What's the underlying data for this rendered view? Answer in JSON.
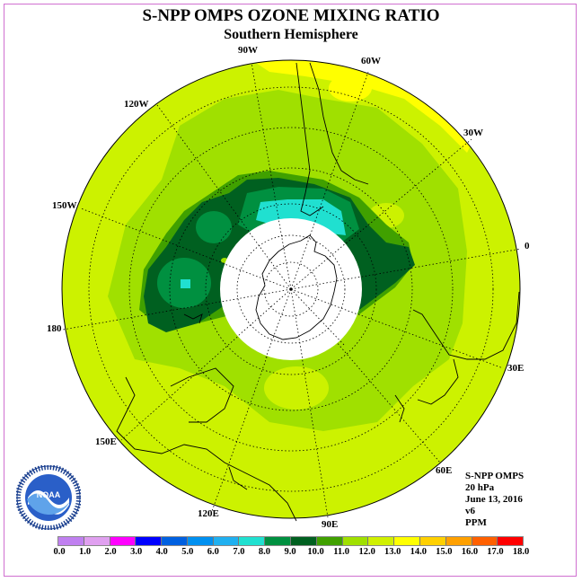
{
  "header": {
    "title": "S-NPP OMPS OZONE MIXING RATIO",
    "subtitle": "Southern Hemisphere"
  },
  "longitude_labels": [
    "90W",
    "60W",
    "120W",
    "30W",
    "150W",
    "0",
    "180",
    "30E",
    "150E",
    "60E",
    "120E",
    "90E"
  ],
  "info": {
    "instrument": "S-NPP OMPS",
    "level": "20 hPa",
    "date": "June 13, 2016",
    "version": "v6",
    "units": "PPM"
  },
  "logo": {
    "name": "NOAA",
    "ring_text": "NATIONAL OCEANIC AND ATMOSPHERIC ADMINISTRATION · U.S. DEPARTMENT OF COMMERCE"
  },
  "colorbar": {
    "ticks": [
      "0.0",
      "1.0",
      "2.0",
      "3.0",
      "4.0",
      "5.0",
      "6.0",
      "7.0",
      "8.0",
      "9.0",
      "10.0",
      "11.0",
      "12.0",
      "13.0",
      "14.0",
      "15.0",
      "16.0",
      "17.0",
      "18.0"
    ],
    "colors": [
      "#c080f0",
      "#e0a0f0",
      "#ff00ff",
      "#0000ff",
      "#0060e0",
      "#0090f0",
      "#20b0f0",
      "#20e0d0",
      "#009040",
      "#006020",
      "#40a000",
      "#a0e000",
      "#d0f000",
      "#ffff00",
      "#ffd000",
      "#ffa000",
      "#ff6000",
      "#ff0000",
      "#8b5a3c"
    ]
  },
  "colors": {
    "background_field": "#ccf200",
    "light_green": "#a0e000",
    "mid_green": "#40a000",
    "dark_green": "#006020",
    "teal_green": "#20e0d0",
    "bright_green": "#009040",
    "yellow": "#ffff00",
    "frame": "#d070d0"
  }
}
